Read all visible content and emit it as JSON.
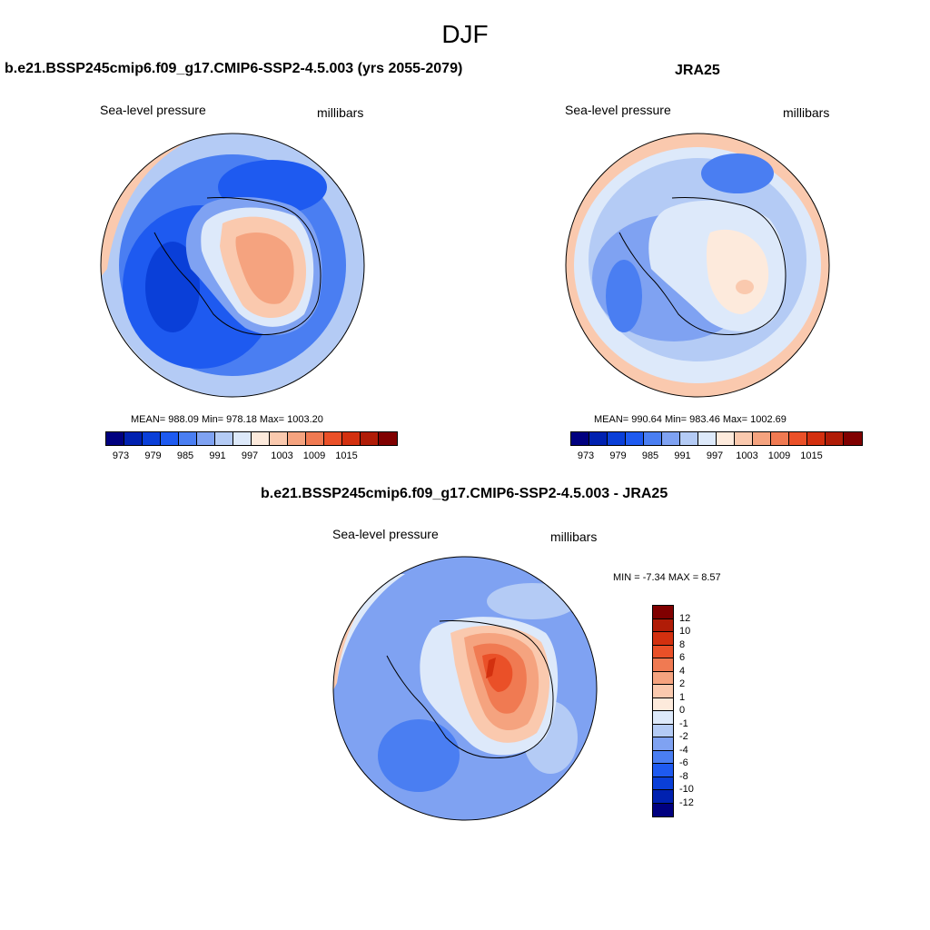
{
  "figure": {
    "season": "DJF"
  },
  "panels": {
    "model": {
      "title": "b.e21.BSSP245cmip6.f09_g17.CMIP6-SSP2-4.5.003 (yrs 2055-2079)",
      "variable": "Sea-level pressure",
      "units": "millibars",
      "stats": "MEAN= 988.09  Min= 978.18  Max= 1003.20"
    },
    "obs": {
      "title": "JRA25",
      "variable": "Sea-level pressure",
      "units": "millibars",
      "stats": "MEAN= 990.64  Min= 983.46  Max= 1002.69"
    },
    "diff": {
      "title": "b.e21.BSSP245cmip6.f09_g17.CMIP6-SSP2-4.5.003 - JRA25",
      "variable": "Sea-level pressure",
      "units": "millibars",
      "stats": "MIN =  -7.34 MAX =   8.57"
    }
  },
  "colorbars": {
    "abs": {
      "colors": [
        "#00007f",
        "#0021b0",
        "#0a3fd8",
        "#1e5af0",
        "#4a7ef2",
        "#7fa2f2",
        "#b4cbf5",
        "#dde9fa",
        "#fdeadc",
        "#fac9ae",
        "#f5a37f",
        "#f07a52",
        "#ea5028",
        "#d3300f",
        "#b01c07",
        "#800000"
      ],
      "labels": [
        "973",
        "979",
        "985",
        "991",
        "997",
        "1003",
        "1009",
        "1015"
      ]
    },
    "diff": {
      "colors": [
        "#800000",
        "#b01c07",
        "#d3300f",
        "#ea5028",
        "#f07a52",
        "#f5a37f",
        "#fac9ae",
        "#fdeadc",
        "#dde9fa",
        "#b4cbf5",
        "#7fa2f2",
        "#4a7ef2",
        "#1e5af0",
        "#0a3fd8",
        "#0021b0",
        "#00007f"
      ],
      "labels": [
        "12",
        "10",
        "8",
        "6",
        "4",
        "2",
        "1",
        "0",
        "-1",
        "-2",
        "-4",
        "-6",
        "-8",
        "-10",
        "-12"
      ]
    }
  }
}
